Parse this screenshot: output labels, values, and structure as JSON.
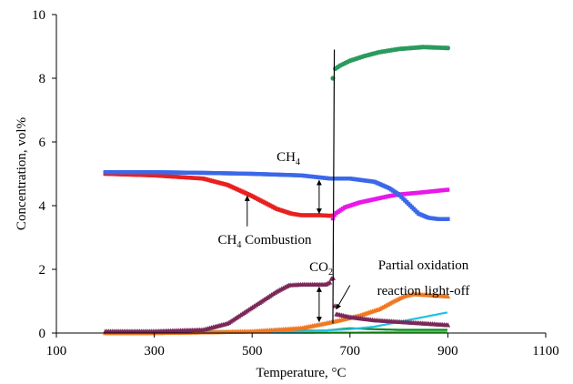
{
  "chart_data": {
    "type": "scatter",
    "xlabel": "Temperature, °C",
    "ylabel": "Concentration, vol%",
    "xlim": [
      100,
      1100
    ],
    "ylim": [
      0,
      10
    ],
    "x_ticks": [
      "100",
      "300",
      "500",
      "700",
      "900",
      "1100"
    ],
    "y_ticks": [
      "0",
      "2",
      "4",
      "6",
      "8",
      "10"
    ],
    "grid": false,
    "legend": "none",
    "annotations": [
      {
        "text": "CH",
        "subscript": "4",
        "at": [
          550,
          5.4
        ]
      },
      {
        "text": "CH",
        "subscript": "4",
        "suffix": " Combustion",
        "at": [
          430,
          2.8
        ],
        "arrow_to": [
          490,
          4.3
        ]
      },
      {
        "text": "CO",
        "subscript": "2",
        "at": [
          617,
          1.95
        ]
      },
      {
        "text": "Partial oxidation",
        "at": [
          850,
          2.0
        ]
      },
      {
        "text": "reaction light-off",
        "at": [
          850,
          1.2
        ]
      }
    ],
    "double_arrows": [
      {
        "x": 637,
        "y1": 3.7,
        "y2": 4.85
      },
      {
        "x": 637,
        "y1": 0.3,
        "y2": 1.5
      }
    ],
    "series": [
      {
        "color": "#3b68e8",
        "marker": "square",
        "x": [
          200,
          300,
          400,
          500,
          600,
          660,
          700,
          750,
          780,
          800,
          820,
          840,
          860,
          880,
          900
        ],
        "y": [
          5.05,
          5.05,
          5.03,
          5.0,
          4.95,
          4.85,
          4.85,
          4.75,
          4.55,
          4.35,
          4.05,
          3.75,
          3.62,
          3.58,
          3.58
        ]
      },
      {
        "color": "#e82020",
        "marker": "square",
        "x": [
          200,
          300,
          400,
          450,
          500,
          550,
          580,
          600,
          620,
          640,
          660,
          665
        ],
        "y": [
          5.0,
          4.95,
          4.85,
          4.65,
          4.3,
          3.9,
          3.75,
          3.7,
          3.7,
          3.7,
          3.68,
          3.7
        ]
      },
      {
        "color": "#7a2858",
        "marker": "triangle",
        "x": [
          200,
          300,
          400,
          450,
          500,
          550,
          575,
          600,
          650,
          660,
          665,
          670,
          700,
          750,
          800,
          850,
          900
        ],
        "y": [
          0.05,
          0.05,
          0.1,
          0.3,
          0.8,
          1.3,
          1.5,
          1.52,
          1.52,
          1.6,
          1.85,
          0.6,
          0.5,
          0.4,
          0.35,
          0.3,
          0.25
        ]
      },
      {
        "color": "#2a9a5e",
        "marker": "circle",
        "x": [
          665,
          670,
          680,
          700,
          730,
          760,
          800,
          850,
          900
        ],
        "y": [
          8.0,
          8.3,
          8.4,
          8.55,
          8.7,
          8.82,
          8.92,
          8.98,
          8.95
        ]
      },
      {
        "color": "#e818e8",
        "marker": "square",
        "x": [
          665,
          670,
          690,
          720,
          750,
          780,
          800,
          850,
          900
        ],
        "y": [
          3.6,
          3.75,
          3.95,
          4.1,
          4.2,
          4.3,
          4.35,
          4.42,
          4.5
        ]
      },
      {
        "color": "#f07820",
        "marker": "triangle",
        "x": [
          200,
          300,
          400,
          500,
          600,
          650,
          680,
          720,
          760,
          790,
          810,
          830,
          850,
          900
        ],
        "y": [
          0.0,
          0.0,
          0.02,
          0.05,
          0.15,
          0.3,
          0.4,
          0.55,
          0.75,
          1.0,
          1.15,
          1.22,
          1.2,
          1.15
        ]
      },
      {
        "color": "#20c0e0",
        "marker": "line",
        "x": [
          200,
          500,
          600,
          650,
          700,
          750,
          800,
          850,
          900
        ],
        "y": [
          0.02,
          0.02,
          0.05,
          0.08,
          0.12,
          0.2,
          0.35,
          0.5,
          0.65
        ]
      },
      {
        "color": "#0a8a20",
        "marker": "line",
        "x": [
          200,
          500,
          650,
          700,
          750,
          800,
          900
        ],
        "y": [
          0.05,
          0.05,
          0.08,
          0.15,
          0.12,
          0.1,
          0.1
        ]
      },
      {
        "color": "#30e030",
        "marker": "line",
        "x": [
          200,
          600,
          700,
          800,
          900
        ],
        "y": [
          0.01,
          0.01,
          0.02,
          0.03,
          0.03
        ]
      }
    ]
  }
}
